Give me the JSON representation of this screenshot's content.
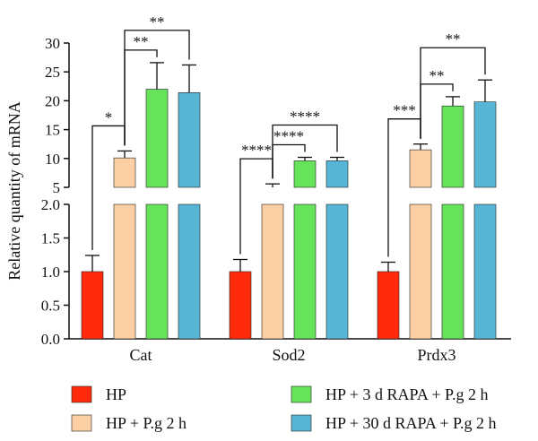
{
  "chart_data": {
    "type": "bar",
    "ylabel": "Relative quantity of mRNA",
    "axis_break": {
      "lower_ylim": [
        0,
        2.0
      ],
      "upper_ylim": [
        5,
        30
      ]
    },
    "lower_ticks": [
      "0.0",
      "0.5",
      "1.0",
      "1.5",
      "2.0"
    ],
    "upper_ticks": [
      "5",
      "10",
      "15",
      "20",
      "25",
      "30"
    ],
    "categories": [
      "Cat",
      "Sod2",
      "Prdx3"
    ],
    "series": [
      {
        "name": "HP",
        "color": "#ff2a0c",
        "values": [
          1.0,
          1.0,
          1.0
        ],
        "errors": [
          0.24,
          0.18,
          0.14
        ]
      },
      {
        "name": "HP + P.g 2 h",
        "color": "#fcd0a4",
        "values": [
          10.1,
          5.0,
          11.5
        ],
        "errors": [
          1.2,
          0.6,
          1.0
        ]
      },
      {
        "name": "HP + 3 d RAPA + P.g 2 h",
        "color": "#66e35a",
        "values": [
          22.0,
          9.6,
          19.1
        ],
        "errors": [
          4.6,
          0.6,
          1.6
        ]
      },
      {
        "name": "HP + 30 d RAPA + P.g 2 h",
        "color": "#57b5d5",
        "values": [
          21.4,
          9.6,
          19.8
        ],
        "errors": [
          4.8,
          0.6,
          3.8
        ]
      }
    ],
    "significance": [
      {
        "group": 0,
        "from": 0,
        "to": 1,
        "label": "*"
      },
      {
        "group": 0,
        "from": 1,
        "to": 2,
        "label": "**"
      },
      {
        "group": 0,
        "from": 1,
        "to": 3,
        "label": "**"
      },
      {
        "group": 1,
        "from": 0,
        "to": 1,
        "label": "****"
      },
      {
        "group": 1,
        "from": 1,
        "to": 2,
        "label": "****"
      },
      {
        "group": 1,
        "from": 1,
        "to": 3,
        "label": "****"
      },
      {
        "group": 2,
        "from": 0,
        "to": 1,
        "label": "***"
      },
      {
        "group": 2,
        "from": 1,
        "to": 2,
        "label": "**"
      },
      {
        "group": 2,
        "from": 1,
        "to": 3,
        "label": "**"
      }
    ],
    "legend_position": "bottom",
    "grid": false
  }
}
